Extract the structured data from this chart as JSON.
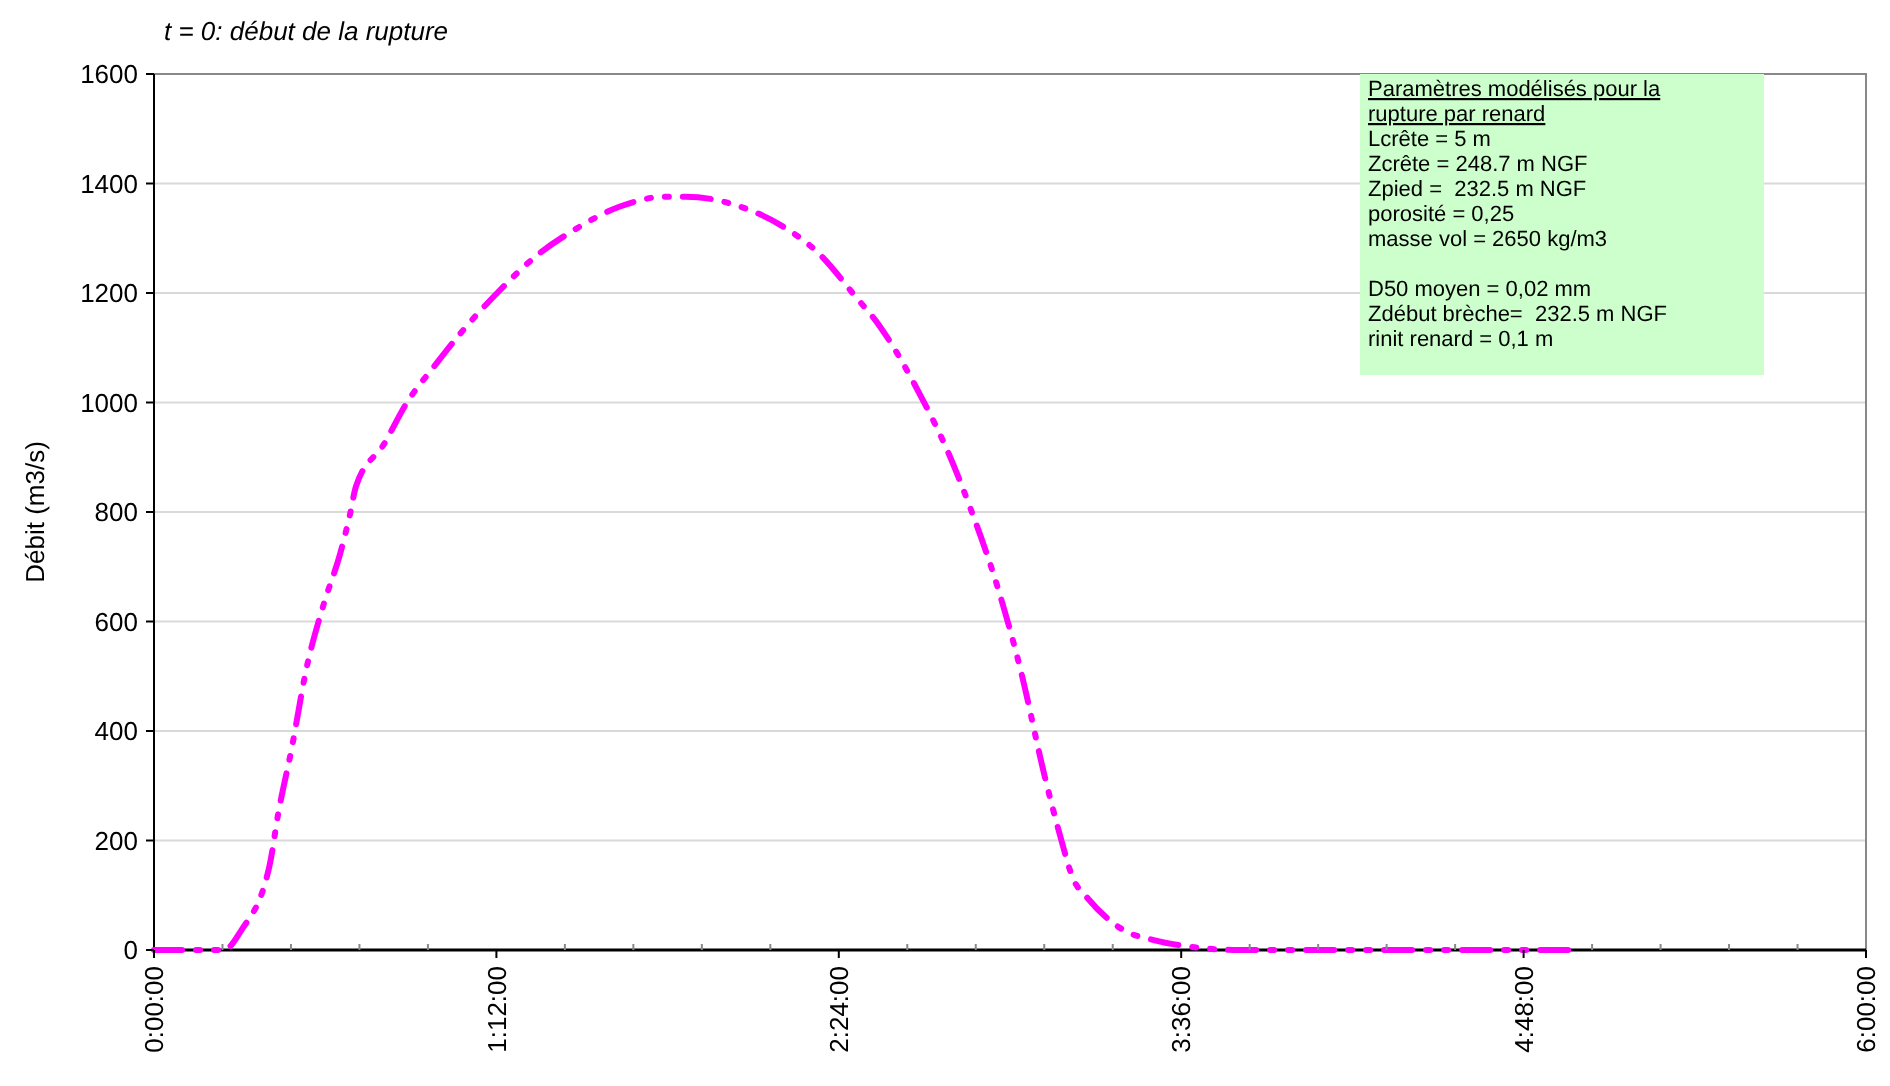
{
  "chart_data": {
    "type": "line",
    "title": "t = 0: début de la rupture",
    "ylabel": "Débit (m3/s)",
    "x": [
      0,
      0.16,
      0.245,
      0.306,
      0.406,
      0.434,
      0.484,
      0.533,
      0.595,
      0.652,
      0.687,
      0.708,
      0.806,
      0.883,
      0.988,
      1.072,
      1.212,
      1.338,
      1.472,
      1.633,
      1.794,
      1.864,
      2.053,
      2.193,
      2.334,
      2.453,
      2.544,
      2.684,
      2.789,
      2.859,
      2.964,
      3.034,
      3.125,
      3.174,
      3.223,
      3.265,
      3.399,
      3.504,
      3.616,
      3.805,
      4.2,
      4.6,
      4.996
    ],
    "series": [
      {
        "color": "#ff00ff",
        "values": [
          0,
          0,
          0,
          36,
          157,
          245,
          372,
          511,
          632,
          723,
          796,
          847,
          924,
          997,
          1070,
          1125,
          1205,
          1267,
          1315,
          1358,
          1376,
          1376,
          1358,
          1325,
          1270,
          1197,
          1139,
          1015,
          902,
          810,
          650,
          518,
          310,
          212,
          128,
          99,
          36,
          18,
          7,
          0,
          0,
          0,
          0
        ]
      }
    ],
    "xlim": [
      0,
      6
    ],
    "xticks": [
      {
        "value": 0,
        "label": "0:00:00"
      },
      {
        "value": 1.2,
        "label": "1:12:00"
      },
      {
        "value": 2.4,
        "label": "2:24:00"
      },
      {
        "value": 3.6,
        "label": "3:36:00"
      },
      {
        "value": 4.8,
        "label": "4:48:00"
      },
      {
        "value": 6,
        "label": "6:00:00"
      }
    ],
    "ylim": [
      0,
      1600
    ],
    "yticks": [
      0,
      200,
      400,
      600,
      800,
      1000,
      1200,
      1400,
      1600
    ],
    "grid": "y",
    "line_style": "dashed",
    "marker": "none",
    "annotations": [
      "Paramètres modélisés pour la rupture par renard",
      "Lcrête = 5 m\nZcrête = 248.7 m NGF\nZpied =  232.5 m NGF\nporosité = 0,25\nmasse vol = 2650 kg/m3",
      "D50 moyen = 0,02 mm\nZdébut brèche=  232.5 m NGF\nrinit renard = 0,1 m"
    ]
  }
}
